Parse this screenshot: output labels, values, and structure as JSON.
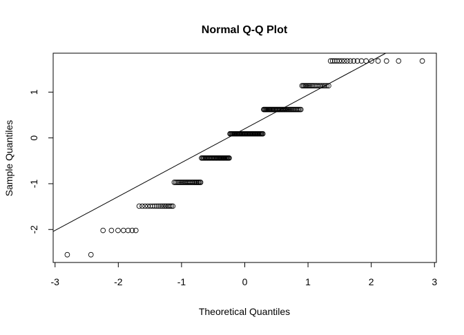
{
  "chart_data": {
    "type": "scatter",
    "title": "Normal Q-Q Plot",
    "xlabel": "Theoretical Quantiles",
    "ylabel": "Sample Quantiles",
    "n": 200,
    "sample_levels": [
      -2.55,
      -2.02,
      -1.49,
      -0.97,
      -0.44,
      0.09,
      0.62,
      1.14,
      1.68
    ],
    "level_counts": [
      2,
      7,
      17,
      23,
      32,
      42,
      40,
      19,
      18
    ],
    "xlim": [
      -3.03,
      3.03
    ],
    "ylim": [
      -2.72,
      1.85
    ],
    "xticks": [
      -3,
      -2,
      -1,
      0,
      1,
      2,
      3
    ],
    "yticks": [
      -2,
      -1,
      0,
      1
    ],
    "reference_line": {
      "intercept": 0.2,
      "slope": 0.74
    },
    "grid": false,
    "point_style": "open-circle"
  }
}
